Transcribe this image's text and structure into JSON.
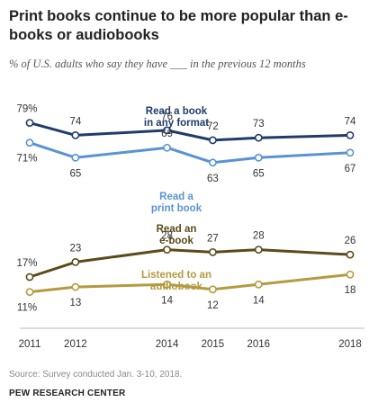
{
  "header": {
    "title": "Print books continue to be more popular than e-books or audiobooks",
    "subtitle": "% of U.S. adults who say they have ___ in the previous 12 months"
  },
  "footer": {
    "source": "Source: Survey conducted Jan. 3-10, 2018.",
    "org": "PEW RESEARCH CENTER"
  },
  "chart_data": {
    "type": "line",
    "x": [
      2011,
      2012,
      2014,
      2015,
      2016,
      2018
    ],
    "tick_labels": [
      "2011",
      "2012",
      "2014",
      "2015",
      "2016",
      "2018"
    ],
    "ylim": [
      0,
      85
    ],
    "grid": false,
    "legend": "inline labels",
    "series": [
      {
        "name": "Read a book in any format",
        "name_lines": [
          "Read a book",
          "in any format"
        ],
        "values": [
          79,
          74,
          76,
          72,
          73,
          74
        ],
        "color": "#1f3c6b",
        "value_labels": [
          "79%",
          "74",
          "76",
          "72",
          "73",
          "74"
        ]
      },
      {
        "name": "Read a print book",
        "name_lines": [
          "Read a",
          "print book"
        ],
        "values": [
          71,
          65,
          69,
          63,
          65,
          67
        ],
        "color": "#5a93d4",
        "value_labels": [
          "71%",
          "65",
          "69",
          "63",
          "65",
          "67"
        ]
      },
      {
        "name": "Read an e-book",
        "name_lines": [
          "Read an",
          "e-book"
        ],
        "values": [
          17,
          23,
          28,
          27,
          28,
          26
        ],
        "color": "#5b4a1a",
        "value_labels": [
          "17%",
          "23",
          "28",
          "27",
          "28",
          "26"
        ]
      },
      {
        "name": "Listened to an audiobook",
        "name_lines": [
          "Listened to an",
          "audiobook"
        ],
        "values": [
          11,
          13,
          14,
          12,
          14,
          18
        ],
        "color": "#b59a3f",
        "value_labels": [
          "11%",
          "13",
          "14",
          "12",
          "14",
          "18"
        ]
      }
    ]
  }
}
